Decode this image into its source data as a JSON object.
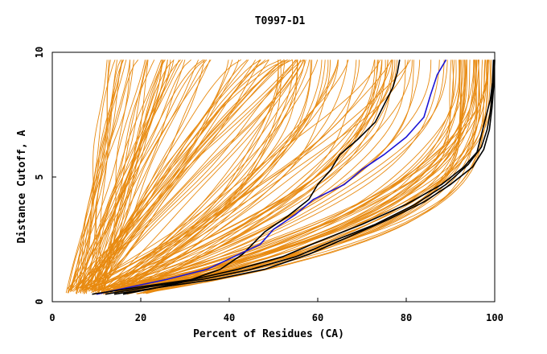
{
  "chart_data": {
    "type": "line",
    "title": "T0997-D1",
    "xlabel": "Percent of Residues (CA)",
    "ylabel": "Distance Cutoff, A",
    "xlim": [
      0,
      100
    ],
    "ylim": [
      0,
      10
    ],
    "x_ticks": [
      0,
      20,
      40,
      60,
      80,
      100
    ],
    "y_ticks": [
      0,
      5,
      10
    ],
    "grid": false,
    "legend": "none",
    "colors": {
      "background_series": "#e88a10",
      "highlight_blue": "#1a14d6",
      "highlight_black": "#000000"
    },
    "background_series_count": 160,
    "highlighted_series": [
      {
        "color": "#000000",
        "points": [
          [
            16,
            0.3
          ],
          [
            22,
            0.5
          ],
          [
            30,
            0.8
          ],
          [
            38,
            1.3
          ],
          [
            43,
            1.9
          ],
          [
            48,
            2.8
          ],
          [
            53,
            3.4
          ],
          [
            58,
            4.1
          ],
          [
            60,
            4.7
          ],
          [
            63,
            5.3
          ],
          [
            65,
            5.9
          ],
          [
            69,
            6.5
          ],
          [
            73,
            7.2
          ],
          [
            75,
            7.9
          ],
          [
            77,
            8.6
          ],
          [
            78,
            9.2
          ],
          [
            78.5,
            9.7
          ]
        ]
      },
      {
        "color": "#1a14d6",
        "points": [
          [
            10,
            0.3
          ],
          [
            18,
            0.6
          ],
          [
            26,
            0.9
          ],
          [
            35,
            1.3
          ],
          [
            41,
            1.8
          ],
          [
            47,
            2.3
          ],
          [
            50,
            2.9
          ],
          [
            55,
            3.5
          ],
          [
            59,
            4.1
          ],
          [
            66,
            4.7
          ],
          [
            70,
            5.3
          ],
          [
            75,
            5.9
          ],
          [
            80,
            6.6
          ],
          [
            84,
            7.4
          ],
          [
            85.5,
            8.3
          ],
          [
            87,
            9.1
          ],
          [
            89,
            9.7
          ]
        ]
      },
      {
        "color": "#000000",
        "points": [
          [
            9,
            0.3
          ],
          [
            20,
            0.6
          ],
          [
            32,
            0.9
          ],
          [
            42,
            1.3
          ],
          [
            52,
            1.8
          ],
          [
            60,
            2.4
          ],
          [
            70,
            3.1
          ],
          [
            80,
            3.9
          ],
          [
            88,
            4.7
          ],
          [
            93,
            5.4
          ],
          [
            96,
            6.0
          ],
          [
            97,
            6.7
          ],
          [
            98,
            7.4
          ],
          [
            99,
            8.1
          ],
          [
            99.5,
            8.8
          ],
          [
            99.7,
            9.7
          ]
        ]
      },
      {
        "color": "#000000",
        "points": [
          [
            12,
            0.3
          ],
          [
            22,
            0.6
          ],
          [
            34,
            0.9
          ],
          [
            45,
            1.3
          ],
          [
            55,
            1.8
          ],
          [
            63,
            2.4
          ],
          [
            73,
            3.1
          ],
          [
            82,
            3.9
          ],
          [
            89,
            4.7
          ],
          [
            94,
            5.5
          ],
          [
            97,
            6.2
          ],
          [
            98.3,
            6.9
          ],
          [
            99,
            7.6
          ],
          [
            99.5,
            8.5
          ],
          [
            99.8,
            9.7
          ]
        ]
      },
      {
        "color": "#000000",
        "points": [
          [
            14,
            0.3
          ],
          [
            25,
            0.6
          ],
          [
            37,
            0.9
          ],
          [
            48,
            1.3
          ],
          [
            58,
            1.9
          ],
          [
            67,
            2.6
          ],
          [
            76,
            3.3
          ],
          [
            84,
            4.0
          ],
          [
            90,
            4.7
          ],
          [
            95,
            5.4
          ],
          [
            97.5,
            6.1
          ],
          [
            98.8,
            6.9
          ],
          [
            99.4,
            7.8
          ],
          [
            99.8,
            8.7
          ],
          [
            100,
            9.7
          ]
        ]
      }
    ]
  }
}
